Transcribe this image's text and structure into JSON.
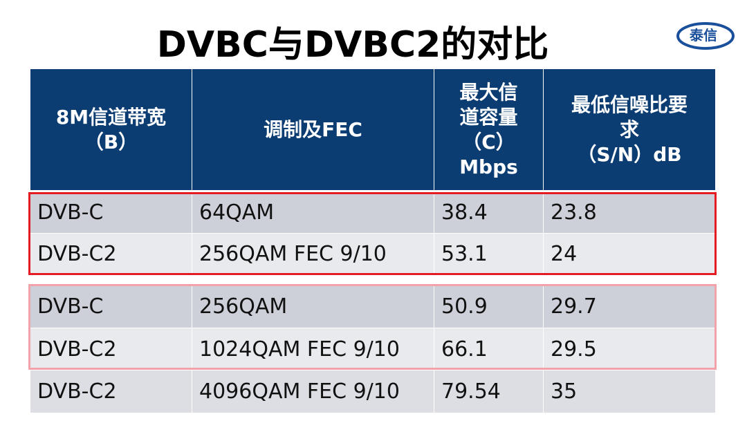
{
  "title": "DVBC与DVBC2的对比",
  "logo": "泰信",
  "table": {
    "header": [
      [
        "8M信道带宽",
        "（B）"
      ],
      [
        "调制及FEC"
      ],
      [
        "最大信",
        "道容量",
        "（C）",
        "Mbps"
      ],
      [
        "最低信噪比要",
        "求",
        "（S/N）dB"
      ]
    ],
    "rows": [
      [
        "DVB-C",
        "64QAM",
        "38.4",
        "23.8"
      ],
      [
        "DVB-C2",
        "256QAM FEC 9/10",
        "53.1",
        "24"
      ],
      [
        "DVB-C",
        "256QAM",
        "50.9",
        "29.7"
      ],
      [
        "DVB-C2",
        "1024QAM FEC 9/10",
        "66.1",
        "29.5"
      ],
      [
        "DVB-C2",
        "4096QAM FEC 9/10",
        "79.54",
        "35"
      ]
    ]
  }
}
